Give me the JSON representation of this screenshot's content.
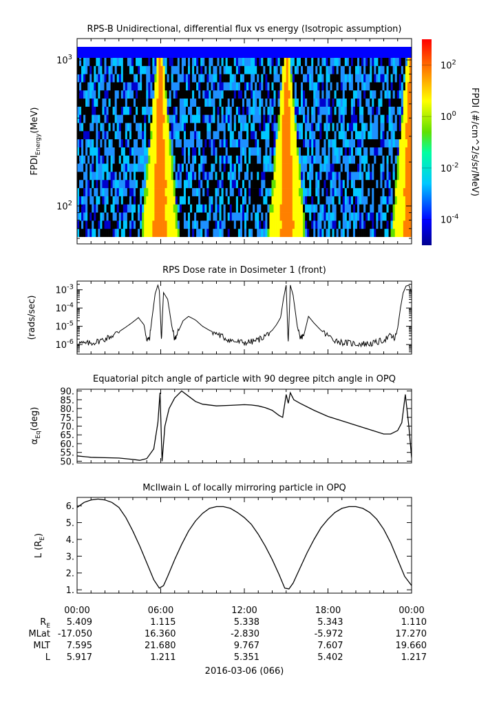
{
  "chart_data": [
    {
      "type": "heatmap",
      "title": "RPS-B  Unidirectional, differential flux vs energy (Isotropic assumption)",
      "ylabel_main": "FPDI",
      "ylabel_sub": "Energy",
      "ylabel_unit": "(MeV)",
      "yscale": "log",
      "ylim": [
        55,
        1400
      ],
      "y_ticks": [
        {
          "value": 100,
          "base": "10",
          "exp": "2"
        },
        {
          "value": 1000,
          "base": "10",
          "exp": "3"
        }
      ],
      "colorbar": {
        "label": "FPDI (#/cm^2/s/sr/MeV)",
        "scale": "log",
        "range": [
          1e-05,
          1000
        ],
        "ticks": [
          {
            "value": 0.0001,
            "base": "10",
            "exp": "-4"
          },
          {
            "value": 0.01,
            "base": "10",
            "exp": "-2"
          },
          {
            "value": 1,
            "base": "10",
            "exp": "0"
          },
          {
            "value": 100,
            "base": "10",
            "exp": "2"
          }
        ]
      },
      "perigee_bands_hours": [
        5.95,
        15.05,
        23.9
      ]
    },
    {
      "type": "line",
      "title": "RPS  Dose rate in Dosimeter 1 (front)",
      "ylabel": "(rads/sec)",
      "yscale": "log",
      "ylim": [
        3e-07,
        0.003
      ],
      "y_ticks": [
        {
          "value": 1e-06,
          "base": "10",
          "exp": "-6"
        },
        {
          "value": 1e-05,
          "base": "10",
          "exp": "-5"
        },
        {
          "value": 0.0001,
          "base": "10",
          "exp": "-4"
        },
        {
          "value": 0.001,
          "base": "10",
          "exp": "-3"
        }
      ],
      "x_hours": [
        0,
        0.5,
        1,
        1.5,
        2,
        2.5,
        3,
        3.5,
        4,
        4.4,
        4.8,
        5.0,
        5.2,
        5.4,
        5.6,
        5.8,
        5.9,
        6.05,
        6.2,
        6.5,
        6.8,
        7.0,
        7.2,
        7.6,
        8.0,
        8.5,
        9.0,
        9.5,
        10.0,
        10.5,
        11.0,
        11.5,
        12.0,
        12.5,
        13.0,
        13.5,
        14.0,
        14.3,
        14.6,
        14.8,
        15.0,
        15.15,
        15.3,
        15.5,
        15.8,
        16.0,
        16.3,
        16.6,
        17.0,
        17.5,
        18.0,
        18.5,
        19.0,
        19.5,
        20.0,
        20.5,
        21.0,
        21.5,
        22.0,
        22.5,
        22.8,
        23.0,
        23.2,
        23.4,
        23.6,
        23.8,
        24.0
      ],
      "y": [
        1.3e-06,
        1.1e-06,
        1.2e-06,
        1.5e-06,
        2e-06,
        3e-06,
        5e-06,
        9e-06,
        1.7e-05,
        3e-05,
        1.2e-05,
        2e-06,
        2e-06,
        4e-05,
        0.0006,
        0.0018,
        0.0009,
        2e-06,
        0.0007,
        0.0003,
        1e-05,
        2e-06,
        4e-06,
        2e-05,
        3.5e-05,
        2.2e-05,
        1e-05,
        6e-06,
        4e-06,
        2.5e-06,
        1.7e-06,
        1.4e-06,
        1.3e-06,
        1.4e-06,
        1.8e-06,
        3e-06,
        6e-06,
        1.2e-05,
        3e-05,
        0.0003,
        0.0018,
        1e-06,
        0.0018,
        0.0005,
        1e-05,
        2e-06,
        4e-06,
        3.5e-05,
        1.5e-05,
        6e-06,
        3e-06,
        1.8e-06,
        1.3e-06,
        1.2e-06,
        1.1e-06,
        1.1e-06,
        1.1e-06,
        1.3e-06,
        1.8e-06,
        3e-06,
        2e-06,
        8e-06,
        0.0001,
        0.0007,
        0.0016,
        0.0018,
        0.0007
      ]
    },
    {
      "type": "line",
      "title": "Equatorial pitch angle of particle with 90 degree pitch angle in OPQ",
      "ylabel_main": "α",
      "ylabel_sub": "Eq",
      "ylabel_unit": "(deg)",
      "ylim": [
        49,
        91
      ],
      "y_ticks": [
        "50.",
        "55.",
        "60.",
        "65.",
        "70.",
        "75.",
        "80.",
        "85.",
        "90."
      ],
      "x_hours": [
        0,
        1,
        2,
        3,
        4,
        4.5,
        5.0,
        5.5,
        5.8,
        5.95,
        6.1,
        6.3,
        6.6,
        7.0,
        7.5,
        8.0,
        8.5,
        9.0,
        10.0,
        11.0,
        12.0,
        12.5,
        13.0,
        13.5,
        14.0,
        14.5,
        14.75,
        15.0,
        15.15,
        15.3,
        15.55,
        16.0,
        17.0,
        18.0,
        19.0,
        20.0,
        21.0,
        22.0,
        22.5,
        23.0,
        23.3,
        23.55,
        23.8,
        24.0
      ],
      "y": [
        53,
        52.2,
        52,
        51.8,
        51,
        50.5,
        51.5,
        57,
        72,
        89,
        50,
        70,
        80,
        86,
        90,
        87,
        84,
        82.5,
        81.5,
        81.8,
        82.2,
        82,
        81.5,
        80.5,
        79,
        76,
        75,
        88,
        83,
        89,
        85,
        83,
        79,
        75.5,
        73,
        70.5,
        68,
        65.5,
        65.5,
        67.5,
        72,
        88,
        70,
        52
      ]
    },
    {
      "type": "line",
      "title": "McIlwain L of locally mirroring particle in OPQ",
      "ylabel_main": "L (R",
      "ylabel_sub": "E",
      "ylabel_unit": ")",
      "ylim": [
        0.8,
        6.5
      ],
      "y_ticks": [
        "1.",
        "2.",
        "3.",
        "4.",
        "5.",
        "6."
      ],
      "x_hours": [
        0,
        0.5,
        1.0,
        1.5,
        2.0,
        2.5,
        3.0,
        3.5,
        4.0,
        4.5,
        5.0,
        5.5,
        5.9,
        6.2,
        6.5,
        7.0,
        7.5,
        8.0,
        8.5,
        9.0,
        9.5,
        10.0,
        10.5,
        11.0,
        11.5,
        12.0,
        12.5,
        13.0,
        13.5,
        14.0,
        14.5,
        14.9,
        15.2,
        15.5,
        16.0,
        16.5,
        17.0,
        17.5,
        18.0,
        18.5,
        19.0,
        19.5,
        20.0,
        20.5,
        21.0,
        21.5,
        22.0,
        22.5,
        23.0,
        23.5,
        24.0
      ],
      "y": [
        5.9,
        6.2,
        6.35,
        6.4,
        6.35,
        6.2,
        5.9,
        5.3,
        4.5,
        3.6,
        2.6,
        1.6,
        1.1,
        1.25,
        1.8,
        2.8,
        3.7,
        4.5,
        5.1,
        5.55,
        5.85,
        5.95,
        5.95,
        5.85,
        5.6,
        5.3,
        4.9,
        4.3,
        3.6,
        2.8,
        1.9,
        1.1,
        1.05,
        1.4,
        2.3,
        3.2,
        4.0,
        4.7,
        5.2,
        5.6,
        5.85,
        5.95,
        5.95,
        5.85,
        5.6,
        5.2,
        4.6,
        3.8,
        2.8,
        1.8,
        1.25
      ]
    }
  ],
  "x_axis": {
    "ticks": [
      "00:00",
      "06:00",
      "12:00",
      "18:00",
      "00:00"
    ],
    "date_label": "2016-03-06 (066)"
  },
  "ephemeris": {
    "rows": [
      {
        "label_main": "R",
        "label_sub": "E",
        "values": [
          "5.409",
          "1.115",
          "5.338",
          "5.343",
          "1.110"
        ]
      },
      {
        "label_main": "MLat",
        "label_sub": "",
        "values": [
          "-17.050",
          "16.360",
          "-2.830",
          "-5.972",
          "17.270"
        ]
      },
      {
        "label_main": "MLT",
        "label_sub": "",
        "values": [
          "7.595",
          "21.680",
          "9.767",
          "7.607",
          "19.660"
        ]
      },
      {
        "label_main": "L",
        "label_sub": "",
        "values": [
          "5.917",
          "1.211",
          "5.351",
          "5.402",
          "1.217"
        ]
      }
    ]
  }
}
